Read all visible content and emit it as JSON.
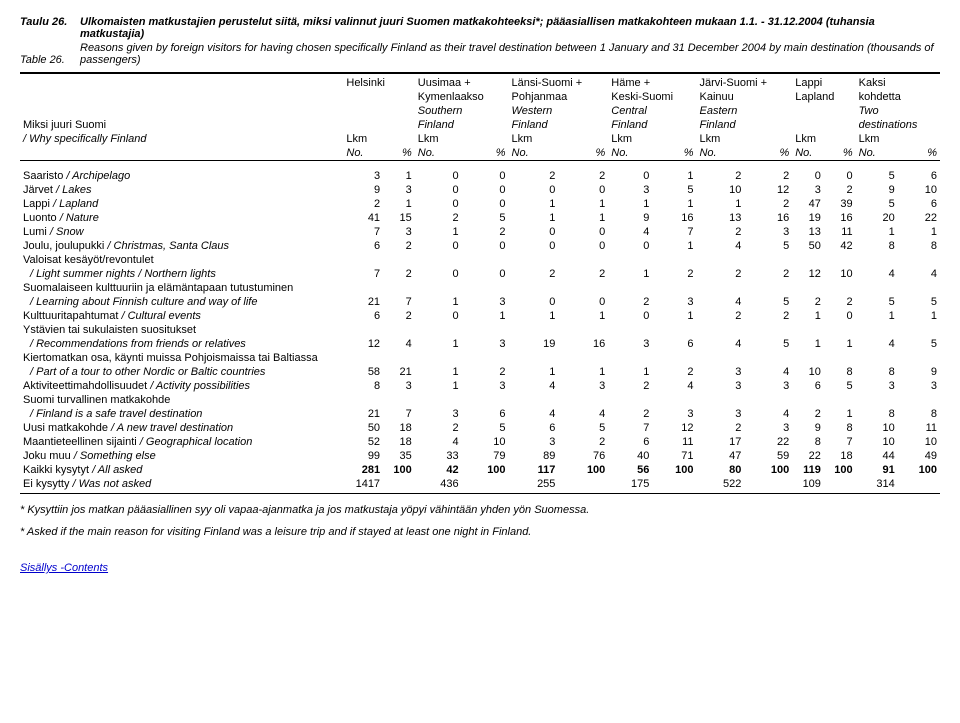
{
  "header": {
    "tableLabelFi": "Taulu 26.",
    "tableLabelEn": "Table 26.",
    "titleFi": "Ulkomaisten matkustajien perustelut siitä, miksi valinnut juuri Suomen matkakohteeksi*; pääasiallisen matkakohteen mukaan 1.1. - 31.12.2004 (tuhansia matkustajia)",
    "titleEn": "Reasons given by foreign visitors for having chosen specifically Finland as their travel destination between 1 January and 31 December 2004 by main destination (thousands of passengers)"
  },
  "rowHeader": {
    "line1": "Miksi juuri Suomi",
    "line2": "/ Why specifically Finland"
  },
  "colGroups": [
    {
      "l1": "Helsinki",
      "l2": "",
      "l3": "",
      "l4": ""
    },
    {
      "l1": "Uusimaa +",
      "l2": "Kymenlaakso",
      "l3": "Southern",
      "l4": "Finland"
    },
    {
      "l1": "Länsi-Suomi +",
      "l2": "Pohjanmaa",
      "l3": "Western",
      "l4": "Finland"
    },
    {
      "l1": "Häme +",
      "l2": "Keski-Suomi",
      "l3": "Central",
      "l4": "Finland"
    },
    {
      "l1": "Järvi-Suomi +",
      "l2": "Kainuu",
      "l3": "Eastern",
      "l4": "Finland"
    },
    {
      "l1": "Lappi",
      "l2": "Lapland",
      "l3": "",
      "l4": ""
    },
    {
      "l1": "Kaksi",
      "l2": "kohdetta",
      "l3": "Two",
      "l4": "destinations"
    }
  ],
  "subHeader": {
    "lkm": "Lkm",
    "no": "No.",
    "pct": "%"
  },
  "rows": [
    {
      "label": "Saaristo / Archipelago",
      "v": [
        "3",
        "1",
        "0",
        "0",
        "2",
        "2",
        "0",
        "1",
        "2",
        "2",
        "0",
        "0",
        "5",
        "6"
      ]
    },
    {
      "label": "Järvet / Lakes",
      "v": [
        "9",
        "3",
        "0",
        "0",
        "0",
        "0",
        "3",
        "5",
        "10",
        "12",
        "3",
        "2",
        "9",
        "10"
      ]
    },
    {
      "label": "Lappi / Lapland",
      "v": [
        "2",
        "1",
        "0",
        "0",
        "1",
        "1",
        "1",
        "1",
        "1",
        "2",
        "47",
        "39",
        "5",
        "6"
      ]
    },
    {
      "label": "Luonto / Nature",
      "v": [
        "41",
        "15",
        "2",
        "5",
        "1",
        "1",
        "9",
        "16",
        "13",
        "16",
        "19",
        "16",
        "20",
        "22"
      ]
    },
    {
      "label": "Lumi / Snow",
      "v": [
        "7",
        "3",
        "1",
        "2",
        "0",
        "0",
        "4",
        "7",
        "2",
        "3",
        "13",
        "11",
        "1",
        "1"
      ]
    },
    {
      "label": "Joulu, joulupukki / Christmas, Santa Claus",
      "v": [
        "6",
        "2",
        "0",
        "0",
        "0",
        "0",
        "0",
        "1",
        "4",
        "5",
        "50",
        "42",
        "8",
        "8"
      ]
    },
    {
      "label": "Valoisat kesäyöt/revontulet",
      "two": true,
      "label2": "/ Light summer nights / Northern lights",
      "v": [
        "7",
        "2",
        "0",
        "0",
        "2",
        "2",
        "1",
        "2",
        "2",
        "2",
        "12",
        "10",
        "4",
        "4"
      ]
    },
    {
      "label": "Suomalaiseen kulttuuriin ja elämäntapaan tutustuminen",
      "two": true,
      "label2": "/ Learning about Finnish culture and way of life",
      "v": [
        "21",
        "7",
        "1",
        "3",
        "0",
        "0",
        "2",
        "3",
        "4",
        "5",
        "2",
        "2",
        "5",
        "5"
      ]
    },
    {
      "label": "Kulttuuritapahtumat / Cultural events",
      "v": [
        "6",
        "2",
        "0",
        "1",
        "1",
        "1",
        "0",
        "1",
        "2",
        "2",
        "1",
        "0",
        "1",
        "1"
      ]
    },
    {
      "label": "Ystävien tai sukulaisten suositukset",
      "two": true,
      "label2": "/ Recommendations from friends or relatives",
      "v": [
        "12",
        "4",
        "1",
        "3",
        "19",
        "16",
        "3",
        "6",
        "4",
        "5",
        "1",
        "1",
        "4",
        "5"
      ]
    },
    {
      "label": "Kiertomatkan osa, käynti muissa Pohjoismaissa tai Baltiassa",
      "two": true,
      "label2": "/ Part of a tour to other Nordic or Baltic countries",
      "v": [
        "58",
        "21",
        "1",
        "2",
        "1",
        "1",
        "1",
        "2",
        "3",
        "4",
        "10",
        "8",
        "8",
        "9"
      ]
    },
    {
      "label": "Aktiviteettimahdollisuudet / Activity possibilities",
      "v": [
        "8",
        "3",
        "1",
        "3",
        "4",
        "3",
        "2",
        "4",
        "3",
        "3",
        "6",
        "5",
        "3",
        "3"
      ]
    },
    {
      "label": "Suomi turvallinen matkakohde",
      "two": true,
      "label2": "/ Finland is a safe travel destination",
      "v": [
        "21",
        "7",
        "3",
        "6",
        "4",
        "4",
        "2",
        "3",
        "3",
        "4",
        "2",
        "1",
        "8",
        "8"
      ]
    },
    {
      "label": "Uusi matkakohde / A new travel destination",
      "v": [
        "50",
        "18",
        "2",
        "5",
        "6",
        "5",
        "7",
        "12",
        "2",
        "3",
        "9",
        "8",
        "10",
        "11"
      ]
    },
    {
      "label": "Maantieteellinen sijainti / Geographical location",
      "v": [
        "52",
        "18",
        "4",
        "10",
        "3",
        "2",
        "6",
        "11",
        "17",
        "22",
        "8",
        "7",
        "10",
        "10"
      ]
    },
    {
      "label": "Joku muu / Something else",
      "v": [
        "99",
        "35",
        "33",
        "79",
        "89",
        "76",
        "40",
        "71",
        "47",
        "59",
        "22",
        "18",
        "44",
        "49"
      ]
    },
    {
      "label": "Kaikki kysytyt / All asked",
      "bold": true,
      "v": [
        "281",
        "100",
        "42",
        "100",
        "117",
        "100",
        "56",
        "100",
        "80",
        "100",
        "119",
        "100",
        "91",
        "100"
      ]
    },
    {
      "label": "Ei kysytty / Was not asked",
      "v": [
        "1417",
        "",
        "436",
        "",
        "255",
        "",
        "175",
        "",
        "522",
        "",
        "109",
        "",
        "314",
        ""
      ]
    }
  ],
  "footnotes": [
    "* Kysyttiin jos matkan pääasiallinen syy oli vapaa-ajanmatka ja jos matkustaja yöpyi vähintään yhden yön Suomessa.",
    "* Asked if the main reason for visiting Finland was a leisure trip and if stayed at least one night in Finland."
  ],
  "link": "Sisällys -Contents"
}
